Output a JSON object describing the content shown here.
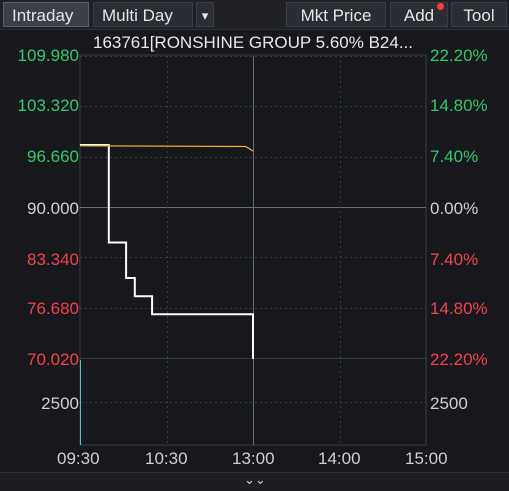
{
  "toolbar": {
    "tabs": [
      {
        "label": "Intraday"
      },
      {
        "label": "Multi Day"
      }
    ],
    "dropdown_glyph": "▾",
    "mkt_price_label": "Mkt Price",
    "add_label": "Add",
    "tool_label": "Tool",
    "notification_color": "#ff3b3b"
  },
  "chart_title": "163761[RONSHINE GROUP 5.60% B24...",
  "expand_glyph": "⌄⌄",
  "colors": {
    "up": "#31c96a",
    "down": "#f0434b",
    "neutral": "#d0d0d0",
    "price_line": "#ffffff",
    "avg_line": "#f0b32a",
    "volume": "#4fc3c8",
    "grid": "#3a3d44"
  },
  "chart_data": {
    "type": "line",
    "title": "163761[RONSHINE GROUP 5.60% B24...",
    "price_axis": {
      "ticks": [
        {
          "label": "109.980",
          "value": 109.98,
          "tone": "up"
        },
        {
          "label": "103.320",
          "value": 103.32,
          "tone": "up"
        },
        {
          "label": "96.660",
          "value": 96.66,
          "tone": "up"
        },
        {
          "label": "90.000",
          "value": 90.0,
          "tone": "neutral"
        },
        {
          "label": "83.340",
          "value": 83.34,
          "tone": "down"
        },
        {
          "label": "76.680",
          "value": 76.68,
          "tone": "down"
        },
        {
          "label": "70.020",
          "value": 70.02,
          "tone": "down"
        }
      ],
      "ylim": [
        70.02,
        109.98
      ]
    },
    "percent_axis": {
      "ticks": [
        {
          "label": "22.20%",
          "tone": "up"
        },
        {
          "label": "14.80%",
          "tone": "up"
        },
        {
          "label": "7.40%",
          "tone": "up"
        },
        {
          "label": "0.00%",
          "tone": "neutral"
        },
        {
          "label": "7.40%",
          "tone": "down"
        },
        {
          "label": "14.80%",
          "tone": "down"
        },
        {
          "label": "22.20%",
          "tone": "down"
        }
      ]
    },
    "volume_axis": {
      "left_label": "2500",
      "right_label": "2500"
    },
    "time_axis": {
      "ticks": [
        "09:30",
        "10:30",
        "13:00",
        "14:00",
        "15:00"
      ],
      "session_minutes": [
        0,
        60,
        120,
        180,
        240
      ]
    },
    "series": [
      {
        "key": "price",
        "minutes": [
          0,
          20,
          20,
          32,
          32,
          38,
          38,
          50,
          50,
          120,
          120
        ],
        "values": [
          98.2,
          98.2,
          85.3,
          85.3,
          80.6,
          80.6,
          78.2,
          78.2,
          75.8,
          75.8,
          69.9
        ]
      },
      {
        "key": "average",
        "minutes": [
          0,
          115,
          120
        ],
        "values": [
          98.1,
          98.0,
          97.4
        ]
      }
    ]
  }
}
